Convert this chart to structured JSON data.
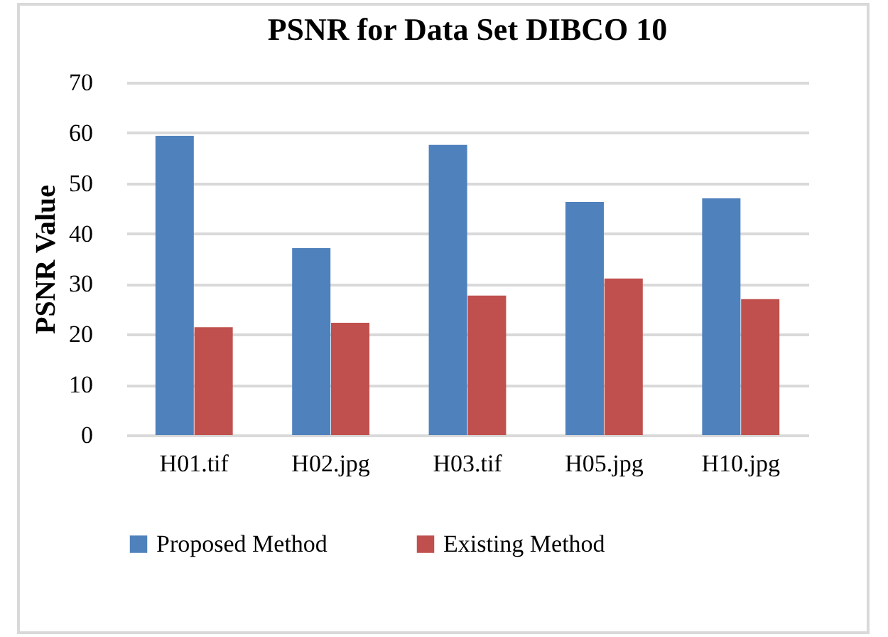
{
  "chart_data": {
    "type": "bar",
    "title": "PSNR for Data Set DIBCO 10",
    "ylabel": "PSNR Value",
    "categories": [
      "H01.tif",
      "H02.jpg",
      "H03.tif",
      "H05.jpg",
      "H10.jpg"
    ],
    "series": [
      {
        "name": "Proposed Method",
        "color": "#4f81bd",
        "values": [
          59.4,
          37.1,
          57.6,
          46.3,
          47.0
        ]
      },
      {
        "name": "Existing Method",
        "color": "#c0504d",
        "values": [
          21.4,
          22.3,
          27.7,
          31.1,
          27.0
        ]
      }
    ],
    "ylim": [
      0,
      70
    ],
    "yticks": [
      0,
      10,
      20,
      30,
      40,
      50,
      60,
      70
    ],
    "grid": "y",
    "legend": "bottom"
  }
}
